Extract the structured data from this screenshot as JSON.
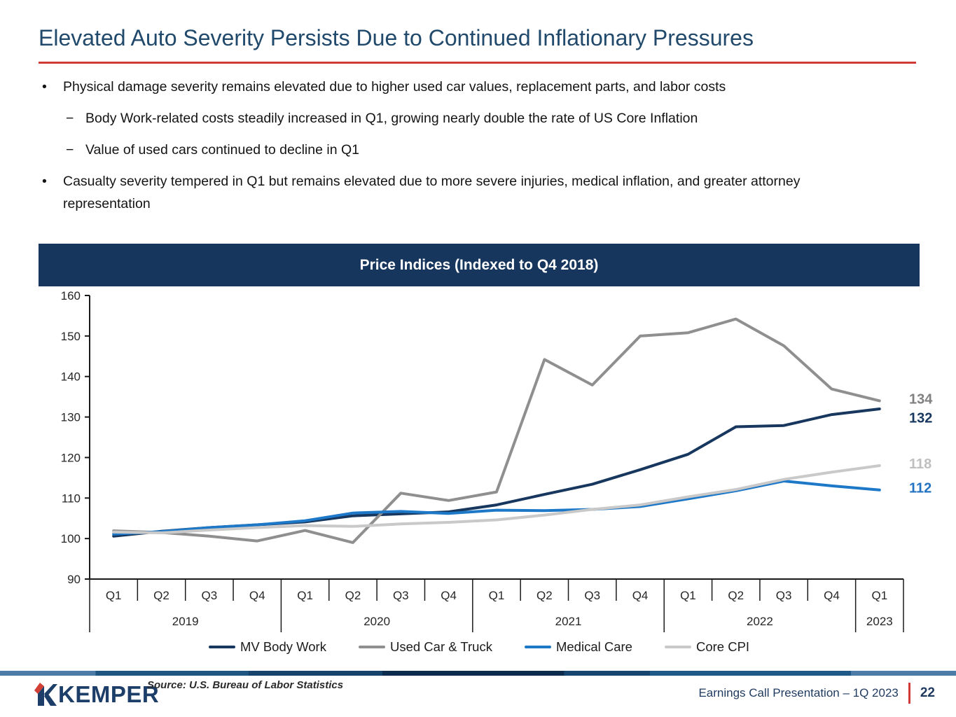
{
  "slide": {
    "title": "Elevated Auto Severity Persists Due to Continued Inflationary Pressures",
    "accent_colors": {
      "title_blue": "#20496b",
      "rule_red": "#cf3b36",
      "banner_navy": "#17365d"
    },
    "bullets": [
      {
        "level": 1,
        "marker": "•",
        "text": "Physical damage severity remains elevated due to higher used car values, replacement parts, and labor costs"
      },
      {
        "level": 2,
        "marker": "−",
        "text": "Body Work-related costs steadily increased in Q1, growing nearly double the rate of US Core Inflation"
      },
      {
        "level": 2,
        "marker": "−",
        "text": "Value of used cars continued to decline in Q1"
      },
      {
        "level": 1,
        "marker": "•",
        "text": "Casualty severity tempered in Q1 but remains elevated due to more severe injuries, medical inflation, and greater attorney representation"
      }
    ]
  },
  "chart_data": {
    "type": "line",
    "title": "Price Indices (Indexed to Q4 2018)",
    "x": [
      "Q1",
      "Q2",
      "Q3",
      "Q4",
      "Q1",
      "Q2",
      "Q3",
      "Q4",
      "Q1",
      "Q2",
      "Q3",
      "Q4",
      "Q1",
      "Q2",
      "Q3",
      "Q4",
      "Q1"
    ],
    "year_groups": [
      {
        "label": "2019",
        "count": 4
      },
      {
        "label": "2020",
        "count": 4
      },
      {
        "label": "2021",
        "count": 4
      },
      {
        "label": "2022",
        "count": 4
      },
      {
        "label": "2023",
        "count": 1
      }
    ],
    "ylim": [
      90,
      160
    ],
    "ytick_step": 10,
    "grid": false,
    "legend_position": "bottom",
    "series": [
      {
        "name": "MV Body Work",
        "color": "#17375e",
        "end_label": "132",
        "end_label_color": "#17375e",
        "values": [
          100.6,
          101.8,
          102.7,
          103.4,
          104.1,
          105.6,
          106.1,
          106.6,
          108.3,
          110.9,
          113.4,
          117.0,
          120.8,
          127.6,
          127.9,
          130.6,
          132
        ]
      },
      {
        "name": "Used Car & Truck",
        "color": "#8f8f8f",
        "end_label": "134",
        "end_label_color": "#808080",
        "values": [
          101.9,
          101.5,
          100.6,
          99.4,
          102.0,
          99.0,
          111.2,
          109.4,
          111.5,
          144.2,
          137.9,
          150.0,
          150.8,
          154.2,
          147.6,
          136.9,
          134
        ]
      },
      {
        "name": "Medical Care",
        "color": "#1d78c8",
        "end_label": "112",
        "end_label_color": "#2473c2",
        "values": [
          101.1,
          101.7,
          102.7,
          103.4,
          104.4,
          106.3,
          106.7,
          106.2,
          107.0,
          106.9,
          107.2,
          107.9,
          109.8,
          111.8,
          114.2,
          113.0,
          112
        ]
      },
      {
        "name": "Core CPI",
        "color": "#c9c9c9",
        "end_label": "118",
        "end_label_color": "#bfbfbf",
        "values": [
          101.6,
          101.4,
          102.1,
          102.7,
          103.2,
          103.0,
          103.6,
          104.0,
          104.6,
          105.8,
          107.2,
          108.3,
          110.3,
          112.1,
          114.6,
          116.4,
          118
        ]
      }
    ]
  },
  "footer": {
    "logo_text": "KEMPER",
    "logo_colors": {
      "navy": "#1c3e68",
      "red": "#d23f34"
    },
    "source": "Source: U.S. Bureau of Labor Statistics",
    "caption": "Earnings Call Presentation – 1Q 2023",
    "page_number": "22"
  }
}
